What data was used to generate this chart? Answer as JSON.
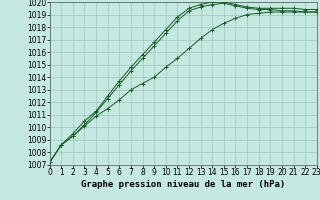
{
  "title": "Graphe pression niveau de la mer (hPa)",
  "bg_color": "#c5e8e0",
  "grid_color": "#9ec8ba",
  "line_color": "#1a5c2a",
  "x_min": 0,
  "x_max": 23,
  "y_min": 1007,
  "y_max": 1020,
  "series": [
    {
      "x": [
        0,
        1,
        2,
        3,
        4,
        5,
        6,
        7,
        8,
        9,
        10,
        11,
        12,
        13,
        14,
        15,
        16,
        17,
        18,
        19,
        20,
        21,
        22,
        23
      ],
      "y": [
        1007.2,
        1008.6,
        1009.3,
        1010.2,
        1011.2,
        1012.3,
        1013.4,
        1014.5,
        1015.5,
        1016.5,
        1017.5,
        1018.5,
        1019.3,
        1019.6,
        1019.8,
        1019.9,
        1019.7,
        1019.5,
        1019.4,
        1019.4,
        1019.3,
        1019.3,
        1019.2,
        1019.2
      ]
    },
    {
      "x": [
        0,
        1,
        2,
        3,
        4,
        5,
        6,
        7,
        8,
        9,
        10,
        11,
        12,
        13,
        14,
        15,
        16,
        17,
        18,
        19,
        20,
        21,
        22,
        23
      ],
      "y": [
        1007.2,
        1008.6,
        1009.3,
        1010.1,
        1010.9,
        1011.5,
        1012.2,
        1013.0,
        1013.5,
        1014.0,
        1014.8,
        1015.5,
        1016.3,
        1017.1,
        1017.8,
        1018.3,
        1018.7,
        1019.0,
        1019.1,
        1019.2,
        1019.2,
        1019.2,
        1019.2,
        1019.2
      ]
    },
    {
      "x": [
        0,
        1,
        2,
        3,
        4,
        5,
        6,
        7,
        8,
        9,
        10,
        11,
        12,
        13,
        14,
        15,
        16,
        17,
        18,
        19,
        20,
        21,
        22,
        23
      ],
      "y": [
        1007.2,
        1008.6,
        1009.5,
        1010.5,
        1011.3,
        1012.5,
        1013.7,
        1014.8,
        1015.8,
        1016.8,
        1017.8,
        1018.8,
        1019.5,
        1019.8,
        1020.0,
        1020.0,
        1019.8,
        1019.6,
        1019.5,
        1019.5,
        1019.5,
        1019.5,
        1019.4,
        1019.4
      ]
    }
  ],
  "title_fontsize": 6.5,
  "tick_fontsize": 5.5
}
